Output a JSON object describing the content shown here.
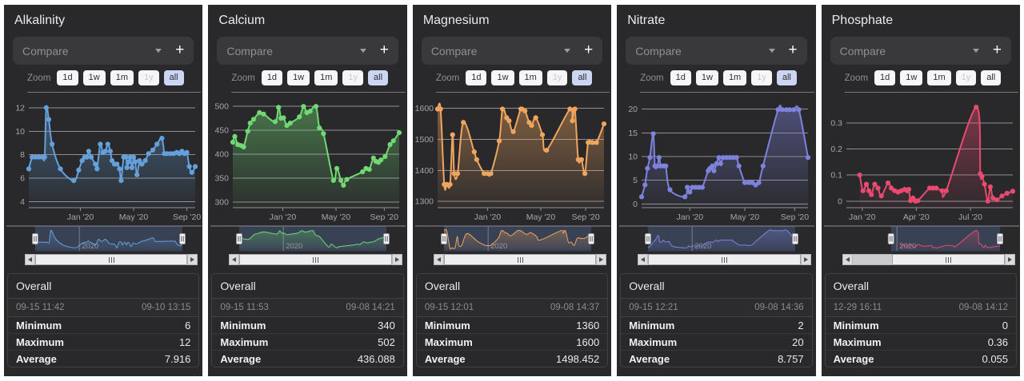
{
  "panels": [
    {
      "title": "Alkalinity",
      "compare": {
        "placeholder": "Compare",
        "add_label": "+"
      },
      "zoom": {
        "label": "Zoom",
        "buttons": [
          {
            "label": "1d",
            "state": "normal"
          },
          {
            "label": "1w",
            "state": "normal"
          },
          {
            "label": "1m",
            "state": "normal"
          },
          {
            "label": "1y",
            "state": "disabled"
          },
          {
            "label": "all",
            "state": "selected"
          }
        ]
      },
      "overall": {
        "heading": "Overall",
        "start": "09-15 11:42",
        "end": "09-10 13:15",
        "stats": [
          {
            "label": "Minimum",
            "value": "6"
          },
          {
            "label": "Maximum",
            "value": "12"
          },
          {
            "label": "Average",
            "value": "7.916"
          }
        ]
      }
    },
    {
      "title": "Calcium",
      "compare": {
        "placeholder": "Compare",
        "add_label": "+"
      },
      "zoom": {
        "label": "Zoom",
        "buttons": [
          {
            "label": "1d",
            "state": "normal"
          },
          {
            "label": "1w",
            "state": "normal"
          },
          {
            "label": "1m",
            "state": "normal"
          },
          {
            "label": "1y",
            "state": "disabled"
          },
          {
            "label": "all",
            "state": "selected"
          }
        ]
      },
      "overall": {
        "heading": "Overall",
        "start": "09-15 11:53",
        "end": "09-08 14:21",
        "stats": [
          {
            "label": "Minimum",
            "value": "340"
          },
          {
            "label": "Maximum",
            "value": "502"
          },
          {
            "label": "Average",
            "value": "436.088"
          }
        ]
      }
    },
    {
      "title": "Magnesium",
      "compare": {
        "placeholder": "Compare",
        "add_label": "+"
      },
      "zoom": {
        "label": "Zoom",
        "buttons": [
          {
            "label": "1d",
            "state": "normal"
          },
          {
            "label": "1w",
            "state": "normal"
          },
          {
            "label": "1m",
            "state": "normal"
          },
          {
            "label": "1y",
            "state": "disabled"
          },
          {
            "label": "all",
            "state": "selected"
          }
        ]
      },
      "overall": {
        "heading": "Overall",
        "start": "09-15 12:01",
        "end": "09-08 14:37",
        "stats": [
          {
            "label": "Minimum",
            "value": "1360"
          },
          {
            "label": "Maximum",
            "value": "1600"
          },
          {
            "label": "Average",
            "value": "1498.452"
          }
        ]
      }
    },
    {
      "title": "Nitrate",
      "compare": {
        "placeholder": "Compare",
        "add_label": "+"
      },
      "zoom": {
        "label": "Zoom",
        "buttons": [
          {
            "label": "1d",
            "state": "normal"
          },
          {
            "label": "1w",
            "state": "normal"
          },
          {
            "label": "1m",
            "state": "normal"
          },
          {
            "label": "1y",
            "state": "disabled"
          },
          {
            "label": "all",
            "state": "selected"
          }
        ]
      },
      "overall": {
        "heading": "Overall",
        "start": "09-15 12:21",
        "end": "09-08 14:36",
        "stats": [
          {
            "label": "Minimum",
            "value": "2"
          },
          {
            "label": "Maximum",
            "value": "20"
          },
          {
            "label": "Average",
            "value": "8.757"
          }
        ]
      }
    },
    {
      "title": "Phosphate",
      "compare": {
        "placeholder": "Compare",
        "add_label": "+"
      },
      "zoom": {
        "label": "Zoom",
        "buttons": [
          {
            "label": "1d",
            "state": "normal"
          },
          {
            "label": "1w",
            "state": "normal"
          },
          {
            "label": "1m",
            "state": "normal"
          },
          {
            "label": "1y",
            "state": "disabled"
          },
          {
            "label": "all",
            "state": "normal"
          }
        ]
      },
      "overall": {
        "heading": "Overall",
        "start": "12-29 16:11",
        "end": "09-08 14:12",
        "stats": [
          {
            "label": "Minimum",
            "value": "0"
          },
          {
            "label": "Maximum",
            "value": "0.36"
          },
          {
            "label": "Average",
            "value": "0.055"
          }
        ]
      }
    }
  ],
  "chart_data": [
    {
      "type": "line",
      "title": "Alkalinity",
      "color": "#64a1dc",
      "ylim": [
        3.5,
        12.6
      ],
      "yticks": [
        4,
        6,
        8,
        10,
        12
      ],
      "xticks": [
        {
          "pos": 0.31,
          "label": "Jan '20"
        },
        {
          "pos": 0.63,
          "label": "May '20"
        },
        {
          "pos": 0.95,
          "label": "Sep '20"
        }
      ],
      "points": [
        [
          0,
          6.8
        ],
        [
          0.02,
          7.8
        ],
        [
          0.04,
          7.8
        ],
        [
          0.06,
          7.8
        ],
        [
          0.08,
          7.8
        ],
        [
          0.095,
          7.8
        ],
        [
          0.105,
          12.0
        ],
        [
          0.12,
          11.0
        ],
        [
          0.14,
          8.9
        ],
        [
          0.19,
          6.8
        ],
        [
          0.27,
          5.8
        ],
        [
          0.3,
          6.7
        ],
        [
          0.32,
          7.5
        ],
        [
          0.335,
          7.8
        ],
        [
          0.35,
          7.8
        ],
        [
          0.36,
          8.3
        ],
        [
          0.375,
          7.8
        ],
        [
          0.4,
          7.2
        ],
        [
          0.41,
          6.8
        ],
        [
          0.43,
          8.9
        ],
        [
          0.445,
          8.2
        ],
        [
          0.46,
          8.3
        ],
        [
          0.475,
          8.9
        ],
        [
          0.49,
          8.3
        ],
        [
          0.5,
          7.5
        ],
        [
          0.515,
          7.2
        ],
        [
          0.53,
          7.2
        ],
        [
          0.545,
          6.8
        ],
        [
          0.555,
          5.8
        ],
        [
          0.57,
          7.8
        ],
        [
          0.585,
          7.8
        ],
        [
          0.59,
          6.9
        ],
        [
          0.6,
          7.4
        ],
        [
          0.61,
          7.8
        ],
        [
          0.62,
          6.9
        ],
        [
          0.63,
          7.8
        ],
        [
          0.64,
          7.4
        ],
        [
          0.65,
          6.3
        ],
        [
          0.665,
          7.5
        ],
        [
          0.68,
          7.2
        ],
        [
          0.7,
          7.5
        ],
        [
          0.72,
          8.1
        ],
        [
          0.745,
          8.4
        ],
        [
          0.77,
          8.9
        ],
        [
          0.8,
          9.4
        ],
        [
          0.815,
          8.1
        ],
        [
          0.83,
          8.1
        ],
        [
          0.85,
          8.1
        ],
        [
          0.87,
          8.1
        ],
        [
          0.89,
          8.2
        ],
        [
          0.905,
          8.1
        ],
        [
          0.92,
          8.3
        ],
        [
          0.935,
          8.1
        ],
        [
          0.95,
          8.2
        ],
        [
          0.965,
          7.0
        ],
        [
          0.98,
          6.5
        ],
        [
          1,
          7.0
        ]
      ],
      "navigator": {
        "sel_start": 0,
        "year_pos": 0.3,
        "year_label": "2020"
      },
      "scrollbar_thumb_start": 0
    },
    {
      "type": "line",
      "title": "Calcium",
      "color": "#70d973",
      "ylim": [
        288,
        512
      ],
      "yticks": [
        300,
        350,
        400,
        450,
        500
      ],
      "xticks": [
        {
          "pos": 0.3,
          "label": "Jan '20"
        },
        {
          "pos": 0.62,
          "label": "May '20"
        },
        {
          "pos": 0.91,
          "label": "Sep '20"
        }
      ],
      "points": [
        [
          0,
          425
        ],
        [
          0.012,
          437
        ],
        [
          0.03,
          420
        ],
        [
          0.05,
          418
        ],
        [
          0.065,
          415
        ],
        [
          0.09,
          448
        ],
        [
          0.105,
          465
        ],
        [
          0.125,
          473
        ],
        [
          0.16,
          487
        ],
        [
          0.185,
          484
        ],
        [
          0.255,
          468
        ],
        [
          0.275,
          498
        ],
        [
          0.29,
          475
        ],
        [
          0.305,
          476
        ],
        [
          0.325,
          460
        ],
        [
          0.345,
          465
        ],
        [
          0.4,
          478
        ],
        [
          0.425,
          500
        ],
        [
          0.445,
          487
        ],
        [
          0.465,
          490
        ],
        [
          0.5,
          500
        ],
        [
          0.52,
          455
        ],
        [
          0.545,
          443
        ],
        [
          0.605,
          345
        ],
        [
          0.625,
          370
        ],
        [
          0.65,
          345
        ],
        [
          0.665,
          335
        ],
        [
          0.685,
          347
        ],
        [
          0.78,
          363
        ],
        [
          0.8,
          370
        ],
        [
          0.82,
          368
        ],
        [
          0.845,
          392
        ],
        [
          0.86,
          385
        ],
        [
          0.875,
          383
        ],
        [
          0.89,
          388
        ],
        [
          0.915,
          395
        ],
        [
          0.945,
          420
        ],
        [
          0.965,
          428
        ],
        [
          1,
          445
        ]
      ],
      "navigator": {
        "sel_start": 0,
        "year_pos": 0.3,
        "year_label": "2020"
      },
      "scrollbar_thumb_start": 0
    },
    {
      "type": "line",
      "title": "Magnesium",
      "color": "#f0a55e",
      "ylim": [
        1280,
        1625
      ],
      "yticks": [
        1300,
        1400,
        1500,
        1600
      ],
      "xticks": [
        {
          "pos": 0.3,
          "label": "Jan '20"
        },
        {
          "pos": 0.62,
          "label": "May '20"
        },
        {
          "pos": 0.89,
          "label": "Sep '20"
        }
      ],
      "points": [
        [
          0,
          1598
        ],
        [
          0.018,
          1598
        ],
        [
          0.04,
          1355
        ],
        [
          0.055,
          1355
        ],
        [
          0.075,
          1355
        ],
        [
          0.09,
          1515
        ],
        [
          0.1,
          1390
        ],
        [
          0.12,
          1390
        ],
        [
          0.155,
          1555
        ],
        [
          0.22,
          1460
        ],
        [
          0.235,
          1435
        ],
        [
          0.28,
          1390
        ],
        [
          0.3,
          1390
        ],
        [
          0.32,
          1390
        ],
        [
          0.37,
          1495
        ],
        [
          0.39,
          1598
        ],
        [
          0.415,
          1570
        ],
        [
          0.43,
          1560
        ],
        [
          0.455,
          1525
        ],
        [
          0.5,
          1598
        ],
        [
          0.525,
          1592
        ],
        [
          0.55,
          1555
        ],
        [
          0.565,
          1545
        ],
        [
          0.59,
          1570
        ],
        [
          0.63,
          1515
        ],
        [
          0.655,
          1465
        ],
        [
          0.795,
          1598
        ],
        [
          0.81,
          1560
        ],
        [
          0.825,
          1598
        ],
        [
          0.845,
          1435
        ],
        [
          0.865,
          1435
        ],
        [
          0.885,
          1390
        ],
        [
          0.905,
          1490
        ],
        [
          0.93,
          1490
        ],
        [
          0.955,
          1490
        ],
        [
          1,
          1550
        ]
      ],
      "navigator": {
        "sel_start": 0,
        "year_pos": 0.3,
        "year_label": "2020"
      },
      "scrollbar_thumb_start": 0
    },
    {
      "type": "line",
      "title": "Nitrate",
      "color": "#7d82dd",
      "ylim": [
        -0.8,
        21.8
      ],
      "yticks": [
        0,
        5,
        10,
        15,
        20
      ],
      "xticks": [
        {
          "pos": 0.29,
          "label": "Jan '20"
        },
        {
          "pos": 0.62,
          "label": "May '20"
        },
        {
          "pos": 0.92,
          "label": "Sep '20"
        }
      ],
      "points": [
        [
          0,
          1.5
        ],
        [
          0.02,
          4
        ],
        [
          0.035,
          7.5
        ],
        [
          0.05,
          9.8
        ],
        [
          0.07,
          14.8
        ],
        [
          0.08,
          8
        ],
        [
          0.095,
          8
        ],
        [
          0.105,
          9.8
        ],
        [
          0.115,
          8
        ],
        [
          0.13,
          8
        ],
        [
          0.145,
          8
        ],
        [
          0.17,
          3
        ],
        [
          0.26,
          1.5
        ],
        [
          0.275,
          3.5
        ],
        [
          0.29,
          2.5
        ],
        [
          0.305,
          3.5
        ],
        [
          0.325,
          3.5
        ],
        [
          0.345,
          3.5
        ],
        [
          0.365,
          3.5
        ],
        [
          0.4,
          7
        ],
        [
          0.41,
          7.5
        ],
        [
          0.425,
          8
        ],
        [
          0.435,
          7
        ],
        [
          0.45,
          8.5
        ],
        [
          0.465,
          9.8
        ],
        [
          0.475,
          8.5
        ],
        [
          0.49,
          9.8
        ],
        [
          0.51,
          9.8
        ],
        [
          0.53,
          9.8
        ],
        [
          0.55,
          9.8
        ],
        [
          0.57,
          9.8
        ],
        [
          0.585,
          8
        ],
        [
          0.62,
          4.5
        ],
        [
          0.645,
          4.5
        ],
        [
          0.665,
          4.5
        ],
        [
          0.685,
          4
        ],
        [
          0.705,
          4.5
        ],
        [
          0.73,
          8
        ],
        [
          0.82,
          19.9
        ],
        [
          0.845,
          19.9
        ],
        [
          0.87,
          19.9
        ],
        [
          0.89,
          19.9
        ],
        [
          0.915,
          19.9
        ],
        [
          0.945,
          19.9
        ],
        [
          1,
          9.8
        ]
      ],
      "navigator": {
        "sel_start": 0,
        "year_pos": 0.3,
        "year_label": "2020"
      },
      "scrollbar_thumb_start": 0
    },
    {
      "type": "line",
      "title": "Phosphate",
      "color": "#e94a6f",
      "ylim": [
        -0.025,
        0.385
      ],
      "yticks": [
        0,
        0.1,
        0.2,
        0.3
      ],
      "xticks": [
        {
          "pos": 0.095,
          "label": "Jan '20"
        },
        {
          "pos": 0.42,
          "label": "Apr '20"
        },
        {
          "pos": 0.745,
          "label": "Jul '20"
        }
      ],
      "points": [
        [
          0.08,
          0.1
        ],
        [
          0.1,
          0.04
        ],
        [
          0.12,
          0.065
        ],
        [
          0.135,
          0.04
        ],
        [
          0.15,
          0.025
        ],
        [
          0.17,
          0.065
        ],
        [
          0.19,
          0.05
        ],
        [
          0.21,
          0.02
        ],
        [
          0.25,
          0.07
        ],
        [
          0.27,
          0.05
        ],
        [
          0.29,
          0.04
        ],
        [
          0.31,
          0.035
        ],
        [
          0.33,
          0.04
        ],
        [
          0.35,
          0.045
        ],
        [
          0.365,
          0.04
        ],
        [
          0.375,
          0.045
        ],
        [
          0.385,
          0.002
        ],
        [
          0.4,
          0.012
        ],
        [
          0.415,
          0
        ],
        [
          0.43,
          0.002
        ],
        [
          0.5,
          0.05
        ],
        [
          0.52,
          0.05
        ],
        [
          0.54,
          0.05
        ],
        [
          0.575,
          0.04
        ],
        [
          0.6,
          0.04
        ],
        [
          0.78,
          0.36
        ],
        [
          0.805,
          0.105
        ],
        [
          0.815,
          0.095
        ],
        [
          0.83,
          0.065
        ],
        [
          0.85,
          0
        ],
        [
          0.865,
          0.055
        ],
        [
          0.88,
          0.012
        ],
        [
          0.905,
          0.005
        ],
        [
          0.935,
          0.02
        ],
        [
          0.965,
          0.03
        ],
        [
          1,
          0.038
        ]
      ],
      "navigator": {
        "sel_start": 0.26,
        "year_pos": 0.3,
        "year_label": "2020"
      },
      "scrollbar_thumb_start": 0.26
    }
  ]
}
